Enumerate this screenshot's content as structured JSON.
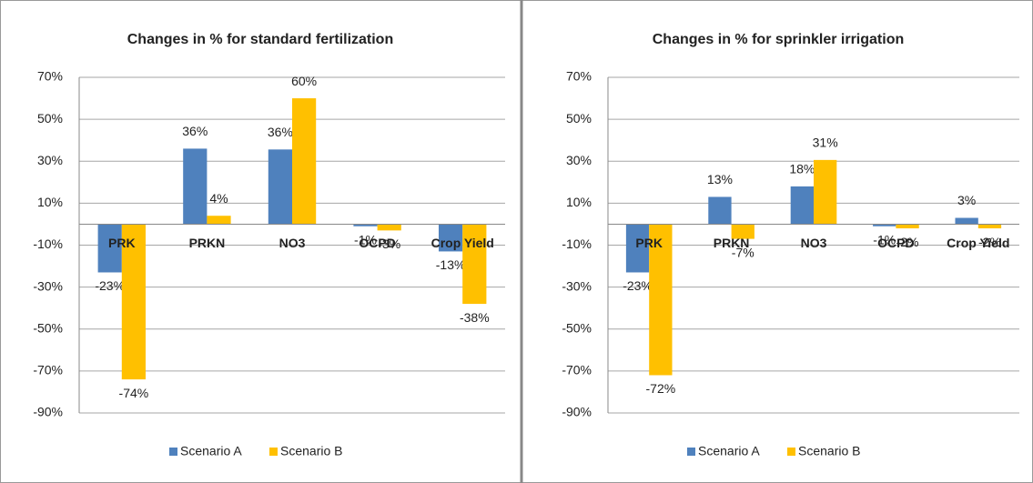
{
  "chart_data": [
    {
      "type": "bar",
      "title": "Changes in % for standard fertilization",
      "categories": [
        "PRK",
        "PRKN",
        "NO3",
        "OCPD",
        "Crop Yield"
      ],
      "series": [
        {
          "name": "Scenario A",
          "color": "#4f81bd",
          "values": [
            -23,
            36,
            35.6,
            -1,
            -13
          ],
          "value_labels": [
            "-23%",
            "36%",
            "36%",
            "-1%",
            "-13%"
          ]
        },
        {
          "name": "Scenario B",
          "color": "#ffc000",
          "values": [
            -74,
            4,
            60,
            -3,
            -38
          ],
          "value_labels": [
            "-74%",
            "4%",
            "60%",
            "-3%",
            "-38%"
          ]
        }
      ],
      "ylim": [
        -90,
        70
      ],
      "yticks": [
        {
          "value": -90,
          "label": "-90%"
        },
        {
          "value": -70,
          "label": "-70%"
        },
        {
          "value": -50,
          "label": "-50%"
        },
        {
          "value": -30,
          "label": "-30%"
        },
        {
          "value": -10,
          "label": "-10%"
        },
        {
          "value": 10,
          "label": "10%"
        },
        {
          "value": 30,
          "label": "30%"
        },
        {
          "value": 50,
          "label": "50%"
        },
        {
          "value": 70,
          "label": "70%"
        }
      ],
      "grid": true,
      "legend": "bottom"
    },
    {
      "type": "bar",
      "title": "Changes in % for sprinkler irrigation",
      "categories": [
        "PRK",
        "PRKN",
        "NO3",
        "OCPD",
        "Crop Yield"
      ],
      "series": [
        {
          "name": "Scenario A",
          "color": "#4f81bd",
          "values": [
            -23,
            13,
            18,
            -1,
            3
          ],
          "value_labels": [
            "-23%",
            "13%",
            "18%",
            "-1%",
            "3%"
          ]
        },
        {
          "name": "Scenario B",
          "color": "#ffc000",
          "values": [
            -72,
            -7,
            30.6,
            -2,
            -2
          ],
          "value_labels": [
            "-72%",
            "-7%",
            "31%",
            "-2%",
            "-2%"
          ]
        }
      ],
      "ylim": [
        -90,
        70
      ],
      "yticks": [
        {
          "value": -90,
          "label": "-90%"
        },
        {
          "value": -70,
          "label": "-70%"
        },
        {
          "value": -50,
          "label": "-50%"
        },
        {
          "value": -30,
          "label": "-30%"
        },
        {
          "value": -10,
          "label": "-10%"
        },
        {
          "value": 10,
          "label": "10%"
        },
        {
          "value": 30,
          "label": "30%"
        },
        {
          "value": 50,
          "label": "50%"
        },
        {
          "value": 70,
          "label": "70%"
        }
      ],
      "grid": true,
      "legend": "bottom"
    }
  ]
}
